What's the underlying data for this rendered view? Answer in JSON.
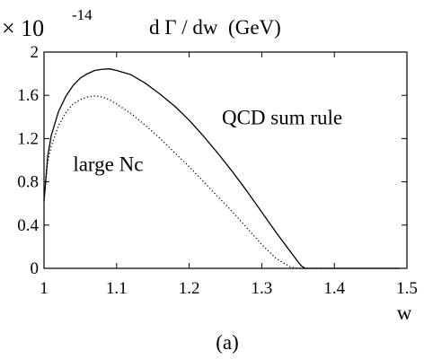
{
  "chart_data": {
    "type": "line",
    "scale_prefix": "× 10",
    "scale_exponent": "-14",
    "ylabel": "d Γ / dw  (GeV)",
    "xlabel": "w",
    "caption": "(a)",
    "xlim": [
      1.0,
      1.5
    ],
    "ylim": [
      0,
      2.0
    ],
    "x_ticks": [
      1.0,
      1.1,
      1.2,
      1.3,
      1.4,
      1.5
    ],
    "x_tick_labels": [
      "1",
      "1.1",
      "1.2",
      "1.3",
      "1.4",
      "1.5"
    ],
    "y_ticks": [
      0,
      0.4,
      0.8,
      1.2,
      1.6,
      2.0
    ],
    "y_tick_labels": [
      "0",
      "0.4",
      "0.8",
      "1.2",
      "1.6",
      "2"
    ],
    "series": [
      {
        "name": "QCD sum rule",
        "style": "solid",
        "x": [
          1.0,
          1.005,
          1.01,
          1.02,
          1.03,
          1.04,
          1.05,
          1.06,
          1.07,
          1.08,
          1.09,
          1.1,
          1.12,
          1.14,
          1.16,
          1.18,
          1.2,
          1.22,
          1.24,
          1.26,
          1.28,
          1.3,
          1.32,
          1.34,
          1.35,
          1.355,
          1.36,
          1.38,
          1.4,
          1.42,
          1.44,
          1.46,
          1.48,
          1.49
        ],
        "y": [
          0.62,
          1.03,
          1.23,
          1.45,
          1.59,
          1.69,
          1.76,
          1.8,
          1.83,
          1.84,
          1.845,
          1.83,
          1.79,
          1.71,
          1.61,
          1.5,
          1.37,
          1.22,
          1.06,
          0.89,
          0.71,
          0.52,
          0.33,
          0.15,
          0.06,
          0.02,
          0.0,
          0.0,
          0.0,
          0.0,
          0.0,
          0.0,
          0.0,
          0.0
        ]
      },
      {
        "name": "large Nc",
        "style": "dotted",
        "x": [
          1.0,
          1.005,
          1.01,
          1.02,
          1.03,
          1.04,
          1.05,
          1.06,
          1.07,
          1.08,
          1.09,
          1.1,
          1.12,
          1.14,
          1.16,
          1.18,
          1.2,
          1.22,
          1.24,
          1.26,
          1.28,
          1.3,
          1.32,
          1.34,
          1.35,
          1.355,
          1.36,
          1.38,
          1.4,
          1.42,
          1.44,
          1.46,
          1.48,
          1.49
        ],
        "y": [
          0.62,
          0.98,
          1.13,
          1.32,
          1.44,
          1.52,
          1.56,
          1.585,
          1.595,
          1.585,
          1.56,
          1.52,
          1.43,
          1.32,
          1.2,
          1.07,
          0.94,
          0.8,
          0.66,
          0.52,
          0.37,
          0.22,
          0.09,
          0.01,
          0.0,
          0.0,
          0.0,
          0.0,
          0.0,
          0.0,
          0.0,
          0.0,
          0.0,
          0.0
        ]
      }
    ],
    "annotations": [
      {
        "text": "QCD sum rule",
        "x": 1.245,
        "y": 1.33
      },
      {
        "text": "large Nc",
        "x": 1.04,
        "y": 0.9
      }
    ]
  }
}
